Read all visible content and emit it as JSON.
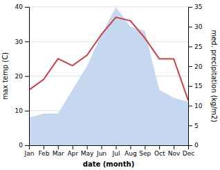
{
  "chart_data": {
    "type": "line",
    "xlabel": "date (month)",
    "ylabel": "max temp (C)",
    "y2label": "med. precipitation (kg/m2)",
    "categories": [
      "Jan",
      "Feb",
      "Mar",
      "Apr",
      "May",
      "Jun",
      "Jul",
      "Aug",
      "Sep",
      "Oct",
      "Nov",
      "Dec"
    ],
    "series": [
      {
        "type": "area",
        "axis": "y2",
        "color": "#c5d8f0",
        "values": [
          7,
          8,
          8,
          14,
          20,
          28,
          35,
          30,
          29,
          14,
          12,
          11
        ]
      },
      {
        "type": "line",
        "color": "#cd4040",
        "values": [
          16,
          19,
          25,
          23,
          26,
          32,
          37,
          36,
          31,
          25,
          25,
          13
        ]
      }
    ],
    "ylim": [
      0,
      40
    ],
    "yticks": [
      0,
      10,
      20,
      30,
      40
    ],
    "y2lim": [
      0,
      35
    ],
    "y2ticks": [
      0,
      5,
      10,
      15,
      20,
      25,
      30,
      35
    ],
    "grid": true
  }
}
